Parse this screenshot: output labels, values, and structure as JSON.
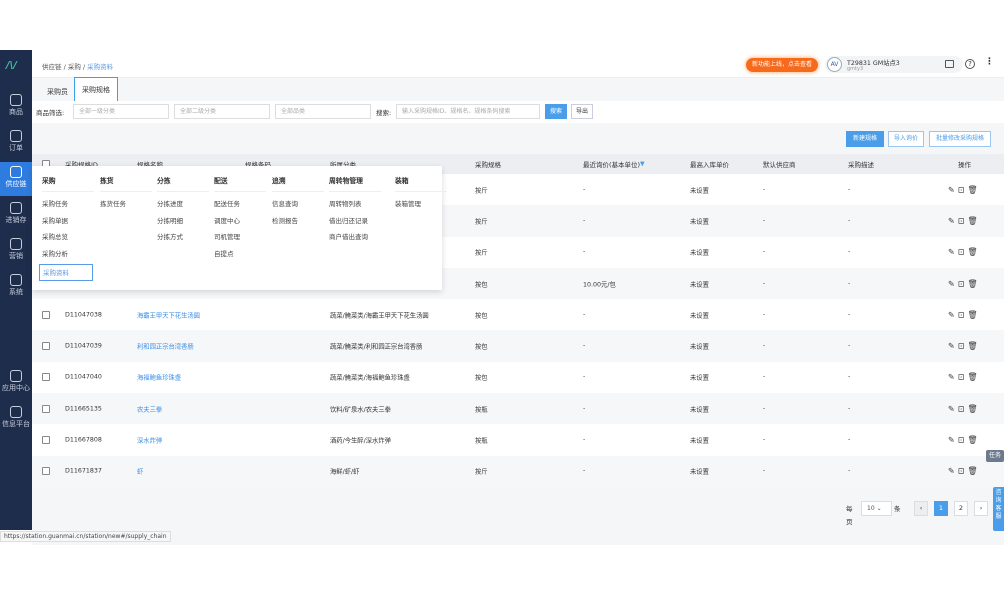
{
  "sidebar": {
    "items": [
      {
        "label": "商品",
        "icon": "bag-icon"
      },
      {
        "label": "订单",
        "icon": "order-icon"
      },
      {
        "label": "供应链",
        "icon": "exchange-icon",
        "active": true
      },
      {
        "label": "进销存",
        "icon": "inventory-icon"
      },
      {
        "label": "营销",
        "icon": "tag-icon"
      },
      {
        "label": "系统",
        "icon": "gear-icon"
      },
      {
        "label": "应用中心",
        "icon": "apps-icon"
      },
      {
        "label": "信息平台",
        "icon": "cube-icon"
      }
    ]
  },
  "header": {
    "breadcrumb": [
      "供应链",
      "采购",
      "采购资料"
    ],
    "promo": "新功能上线，点击查看",
    "station": "T29831 GM站点3",
    "user": "gmty3"
  },
  "tabs": [
    {
      "label": "采购员"
    },
    {
      "label": "采购规格",
      "active": true
    }
  ],
  "filter": {
    "label": "商品筛选:",
    "cat1": "全部一级分类",
    "cat2": "全部二级分类",
    "pinlei": "全部品类",
    "search_label": "搜索:",
    "search_placeholder": "输入采购规格ID、规格名、规格条码搜索",
    "search_btn": "搜索",
    "export_btn": "导出"
  },
  "actions": {
    "new": "新建规格",
    "import": "导入询价",
    "batch": "批量修改采购规格"
  },
  "table": {
    "columns": [
      "采购规格ID",
      "规格名称",
      "规格条码",
      "所属分类",
      "采购规格",
      "最近询价(基本单位)",
      "最高入库单价",
      "默认供应商",
      "采购描述",
      "操作"
    ],
    "rows": [
      {
        "id": "",
        "name": "",
        "code": "",
        "cat": "",
        "spec": "按斤",
        "price": "-",
        "max": "未设置",
        "sup": "-",
        "desc": "-"
      },
      {
        "id": "",
        "name": "",
        "code": "",
        "cat": "",
        "spec": "按斤",
        "price": "-",
        "max": "未设置",
        "sup": "-",
        "desc": "-"
      },
      {
        "id": "",
        "name": "",
        "code": "",
        "cat": "",
        "spec": "按斤",
        "price": "-",
        "max": "未设置",
        "sup": "-",
        "desc": "-"
      },
      {
        "id": "",
        "name": "",
        "code": "",
        "cat": "",
        "spec": "按包",
        "price": "10.00元/包",
        "max": "未设置",
        "sup": "-",
        "desc": "-"
      },
      {
        "id": "D11047038",
        "name": "海霸王甲天下花生汤圆",
        "code": "",
        "cat": "蔬菜/腌菜类/海霸王甲天下花生汤圆",
        "spec": "按包",
        "price": "-",
        "max": "未设置",
        "sup": "-",
        "desc": "-"
      },
      {
        "id": "D11047039",
        "name": "利和园正宗台湾香肠",
        "code": "",
        "cat": "蔬菜/腌菜类/利和园正宗台湾香肠",
        "spec": "按包",
        "price": "-",
        "max": "未设置",
        "sup": "-",
        "desc": "-"
      },
      {
        "id": "D11047040",
        "name": "海福鲍鱼珍珠盏",
        "code": "",
        "cat": "蔬菜/腌菜类/海福鲍鱼珍珠盏",
        "spec": "按包",
        "price": "-",
        "max": "未设置",
        "sup": "-",
        "desc": "-"
      },
      {
        "id": "D11665135",
        "name": "农夫三拳",
        "code": "",
        "cat": "饮料/矿泉水/农夫三拳",
        "spec": "按瓶",
        "price": "-",
        "max": "未设置",
        "sup": "-",
        "desc": "-"
      },
      {
        "id": "D11667808",
        "name": "深水炸弹",
        "code": "",
        "cat": "酒药/今生醉/深水炸弹",
        "spec": "按瓶",
        "price": "-",
        "max": "未设置",
        "sup": "-",
        "desc": "-"
      },
      {
        "id": "D11671837",
        "name": "虾",
        "code": "",
        "cat": "海鲜/虾/虾",
        "spec": "按斤",
        "price": "-",
        "max": "未设置",
        "sup": "-",
        "desc": "-"
      }
    ]
  },
  "menu": [
    {
      "title": "采购",
      "items": [
        "采购任务",
        "采购单据",
        "采购总览",
        "采购分析",
        "采购资料"
      ]
    },
    {
      "title": "拣货",
      "items": [
        "拣货任务"
      ]
    },
    {
      "title": "分拣",
      "items": [
        "分拣进度",
        "分拣明细",
        "分拣方式"
      ]
    },
    {
      "title": "配送",
      "items": [
        "配送任务",
        "调度中心",
        "司机管理",
        "自提点"
      ]
    },
    {
      "title": "追溯",
      "items": [
        "信息查询",
        "检测报告"
      ]
    },
    {
      "title": "周转物管理",
      "items": [
        "周转物列表",
        "借出归还记录",
        "商户借出查询"
      ]
    },
    {
      "title": "装箱",
      "items": [
        "装箱管理"
      ]
    }
  ],
  "pagination": {
    "per_page_label": "每页",
    "per_page": "10",
    "unit": "条",
    "pages": [
      "1",
      "2"
    ],
    "prev": "‹",
    "next": "›"
  },
  "float": {
    "task": "任务",
    "service": "咨询客服"
  },
  "status_url": "https://station.guanmai.cn/station/new#/supply_chain"
}
